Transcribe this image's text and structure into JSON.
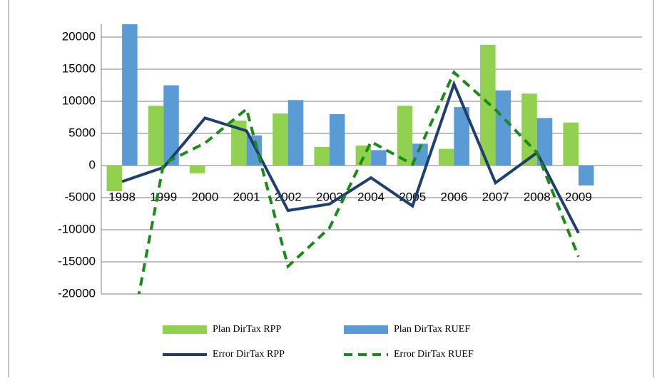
{
  "chart_data": {
    "type": "bar-line",
    "categories": [
      "1998",
      "1999",
      "2000",
      "2001",
      "2002",
      "2003",
      "2004",
      "2005",
      "2006",
      "2007",
      "2008",
      "2009"
    ],
    "series": [
      {
        "name": "Plan DirTax RPP",
        "type": "bar",
        "color": "#92d050",
        "values": [
          -4000,
          9300,
          -1200,
          7000,
          8100,
          2900,
          3100,
          9300,
          2600,
          18800,
          11200,
          6700
        ]
      },
      {
        "name": "Plan DirTax RUEF",
        "type": "bar",
        "color": "#5b9bd5",
        "values": [
          22000,
          12500,
          0,
          4700,
          10200,
          8000,
          2400,
          3400,
          9100,
          11700,
          7400,
          -3100
        ]
      },
      {
        "name": "Error DirTax RPP",
        "type": "line",
        "color": "#1f3f6e",
        "dash": false,
        "values": [
          -2500,
          -300,
          7400,
          5400,
          -7000,
          -6000,
          -1900,
          -6300,
          12700,
          -2700,
          2000,
          -10500
        ]
      },
      {
        "name": "Error DirTax RUEF",
        "type": "line",
        "color": "#1b8a1b",
        "dash": true,
        "values": [
          -34000,
          300,
          3500,
          8800,
          -15700,
          -9700,
          3700,
          200,
          14500,
          8700,
          2000,
          -14200
        ]
      }
    ],
    "ylim": [
      -20000,
      22000
    ],
    "yticks": [
      -20000,
      -15000,
      -10000,
      -5000,
      0,
      5000,
      10000,
      15000,
      20000
    ],
    "grid": true
  }
}
